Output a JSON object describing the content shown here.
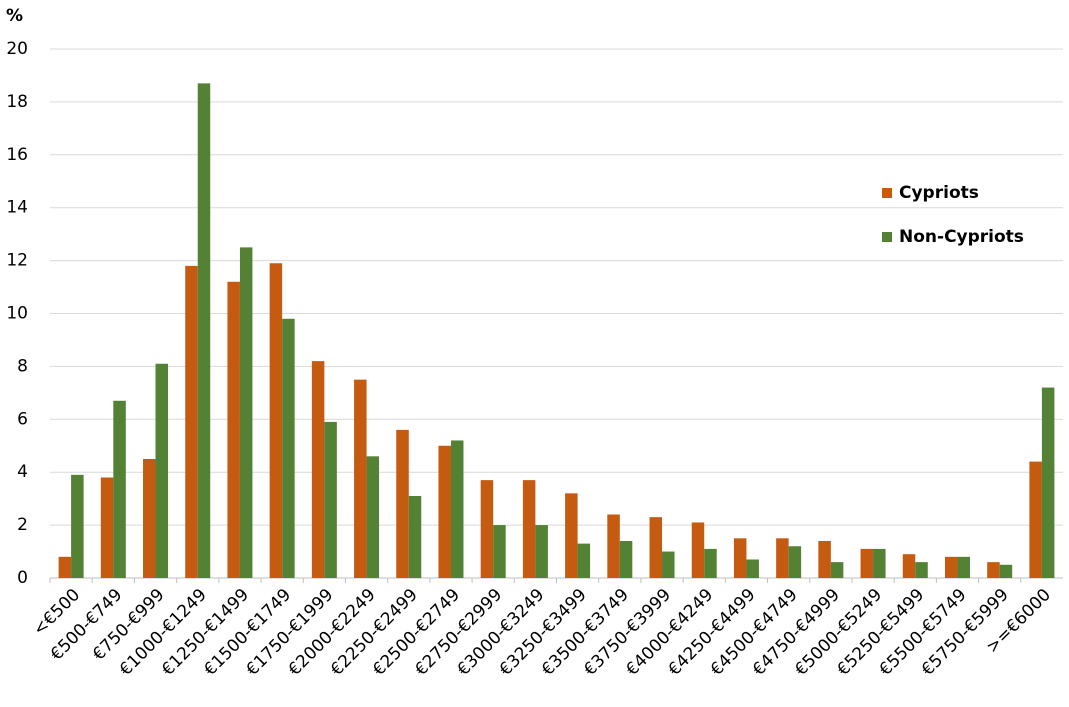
{
  "chart_data": {
    "type": "bar",
    "y_label": "%",
    "categories": [
      "<€500",
      "€500-€749",
      "€750-€999",
      "€1000-€1249",
      "€1250-€1499",
      "€1500-€1749",
      "€1750-€1999",
      "€2000-€2249",
      "€2250-€2499",
      "€2500-€2749",
      "€2750-€2999",
      "€3000-€3249",
      "€3250-€3499",
      "€3500-€3749",
      "€3750-€3999",
      "€4000-€4249",
      "€4250-€4499",
      "€4500-€4749",
      "€4750-€4999",
      "€5000-€5249",
      "€5250-€5499",
      "€5500-€5749",
      "€5750-€5999",
      ">=€6000"
    ],
    "series": [
      {
        "name": "Cypriots",
        "color": "#c55a11",
        "values": [
          0.8,
          3.8,
          4.5,
          11.8,
          11.2,
          11.9,
          8.2,
          7.5,
          5.6,
          5.0,
          3.7,
          3.7,
          3.2,
          2.4,
          2.3,
          2.1,
          1.5,
          1.5,
          1.4,
          1.1,
          0.9,
          0.8,
          0.6,
          4.4
        ]
      },
      {
        "name": "Non-Cypriots",
        "color": "#548235",
        "values": [
          3.9,
          6.7,
          8.1,
          18.7,
          12.5,
          9.8,
          5.9,
          4.6,
          3.1,
          5.2,
          2.0,
          2.0,
          1.3,
          1.4,
          1.0,
          1.1,
          0.7,
          1.2,
          0.6,
          1.1,
          0.6,
          0.8,
          0.5,
          7.2
        ]
      }
    ],
    "ylim": [
      0,
      20
    ],
    "yticks": [
      0,
      2,
      4,
      6,
      8,
      10,
      12,
      14,
      16,
      18,
      20
    ],
    "grid": true,
    "legend": "right"
  }
}
